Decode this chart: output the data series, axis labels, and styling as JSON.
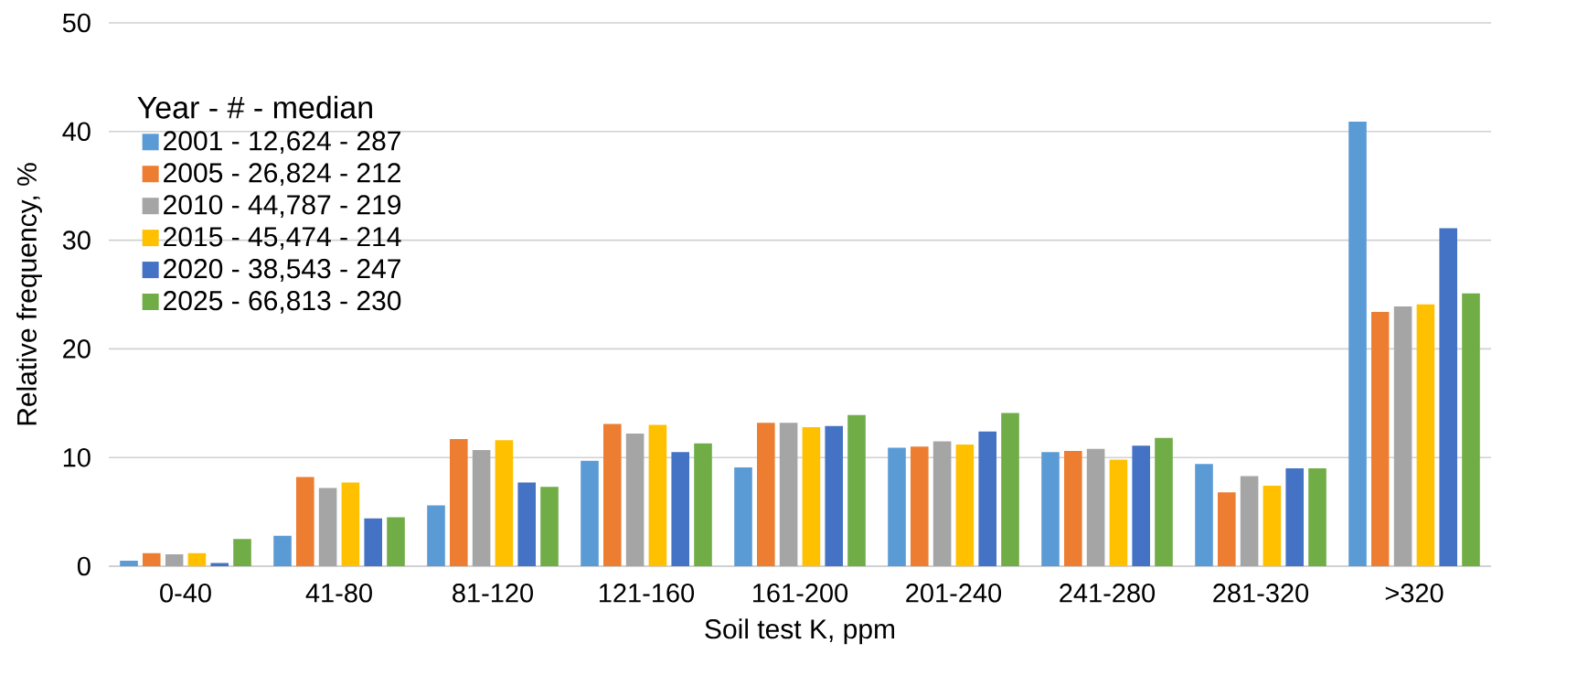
{
  "chart_data": {
    "type": "bar",
    "xlabel": "Soil test K, ppm",
    "ylabel": "Relative frequency, %",
    "legend_title": "Year  -  #  -  median",
    "legend": "top left",
    "grid": "y",
    "categories": [
      "0-40",
      "41-80",
      "81-120",
      "121-160",
      "161-200",
      "201-240",
      "241-280",
      "281-320",
      ">320"
    ],
    "ylim": [
      0,
      50
    ],
    "yticks": [
      0,
      10,
      20,
      30,
      40,
      50
    ],
    "series": [
      {
        "name": "2001 - 12,624 - 287",
        "color": "#5b9bd5",
        "values": [
          0.5,
          2.8,
          5.6,
          9.7,
          9.1,
          10.9,
          10.5,
          9.4,
          40.9
        ]
      },
      {
        "name": "2005 - 26,824 - 212",
        "color": "#ed7d31",
        "values": [
          1.2,
          8.2,
          11.7,
          13.1,
          13.2,
          11.0,
          10.6,
          6.8,
          23.4
        ]
      },
      {
        "name": "2010 - 44,787 - 219",
        "color": "#a5a5a5",
        "values": [
          1.1,
          7.2,
          10.7,
          12.2,
          13.2,
          11.5,
          10.8,
          8.3,
          23.9
        ]
      },
      {
        "name": "2015 - 45,474 - 214",
        "color": "#ffc000",
        "values": [
          1.2,
          7.7,
          11.6,
          13.0,
          12.8,
          11.2,
          9.8,
          7.4,
          24.1
        ]
      },
      {
        "name": "2020 - 38,543 - 247",
        "color": "#4472c4",
        "values": [
          0.3,
          4.4,
          7.7,
          10.5,
          12.9,
          12.4,
          11.1,
          9.0,
          31.1
        ]
      },
      {
        "name": "2025 - 66,813 - 230",
        "color": "#70ad47",
        "values": [
          2.5,
          4.5,
          7.3,
          11.3,
          13.9,
          14.1,
          11.8,
          9.0,
          25.1
        ]
      }
    ]
  }
}
